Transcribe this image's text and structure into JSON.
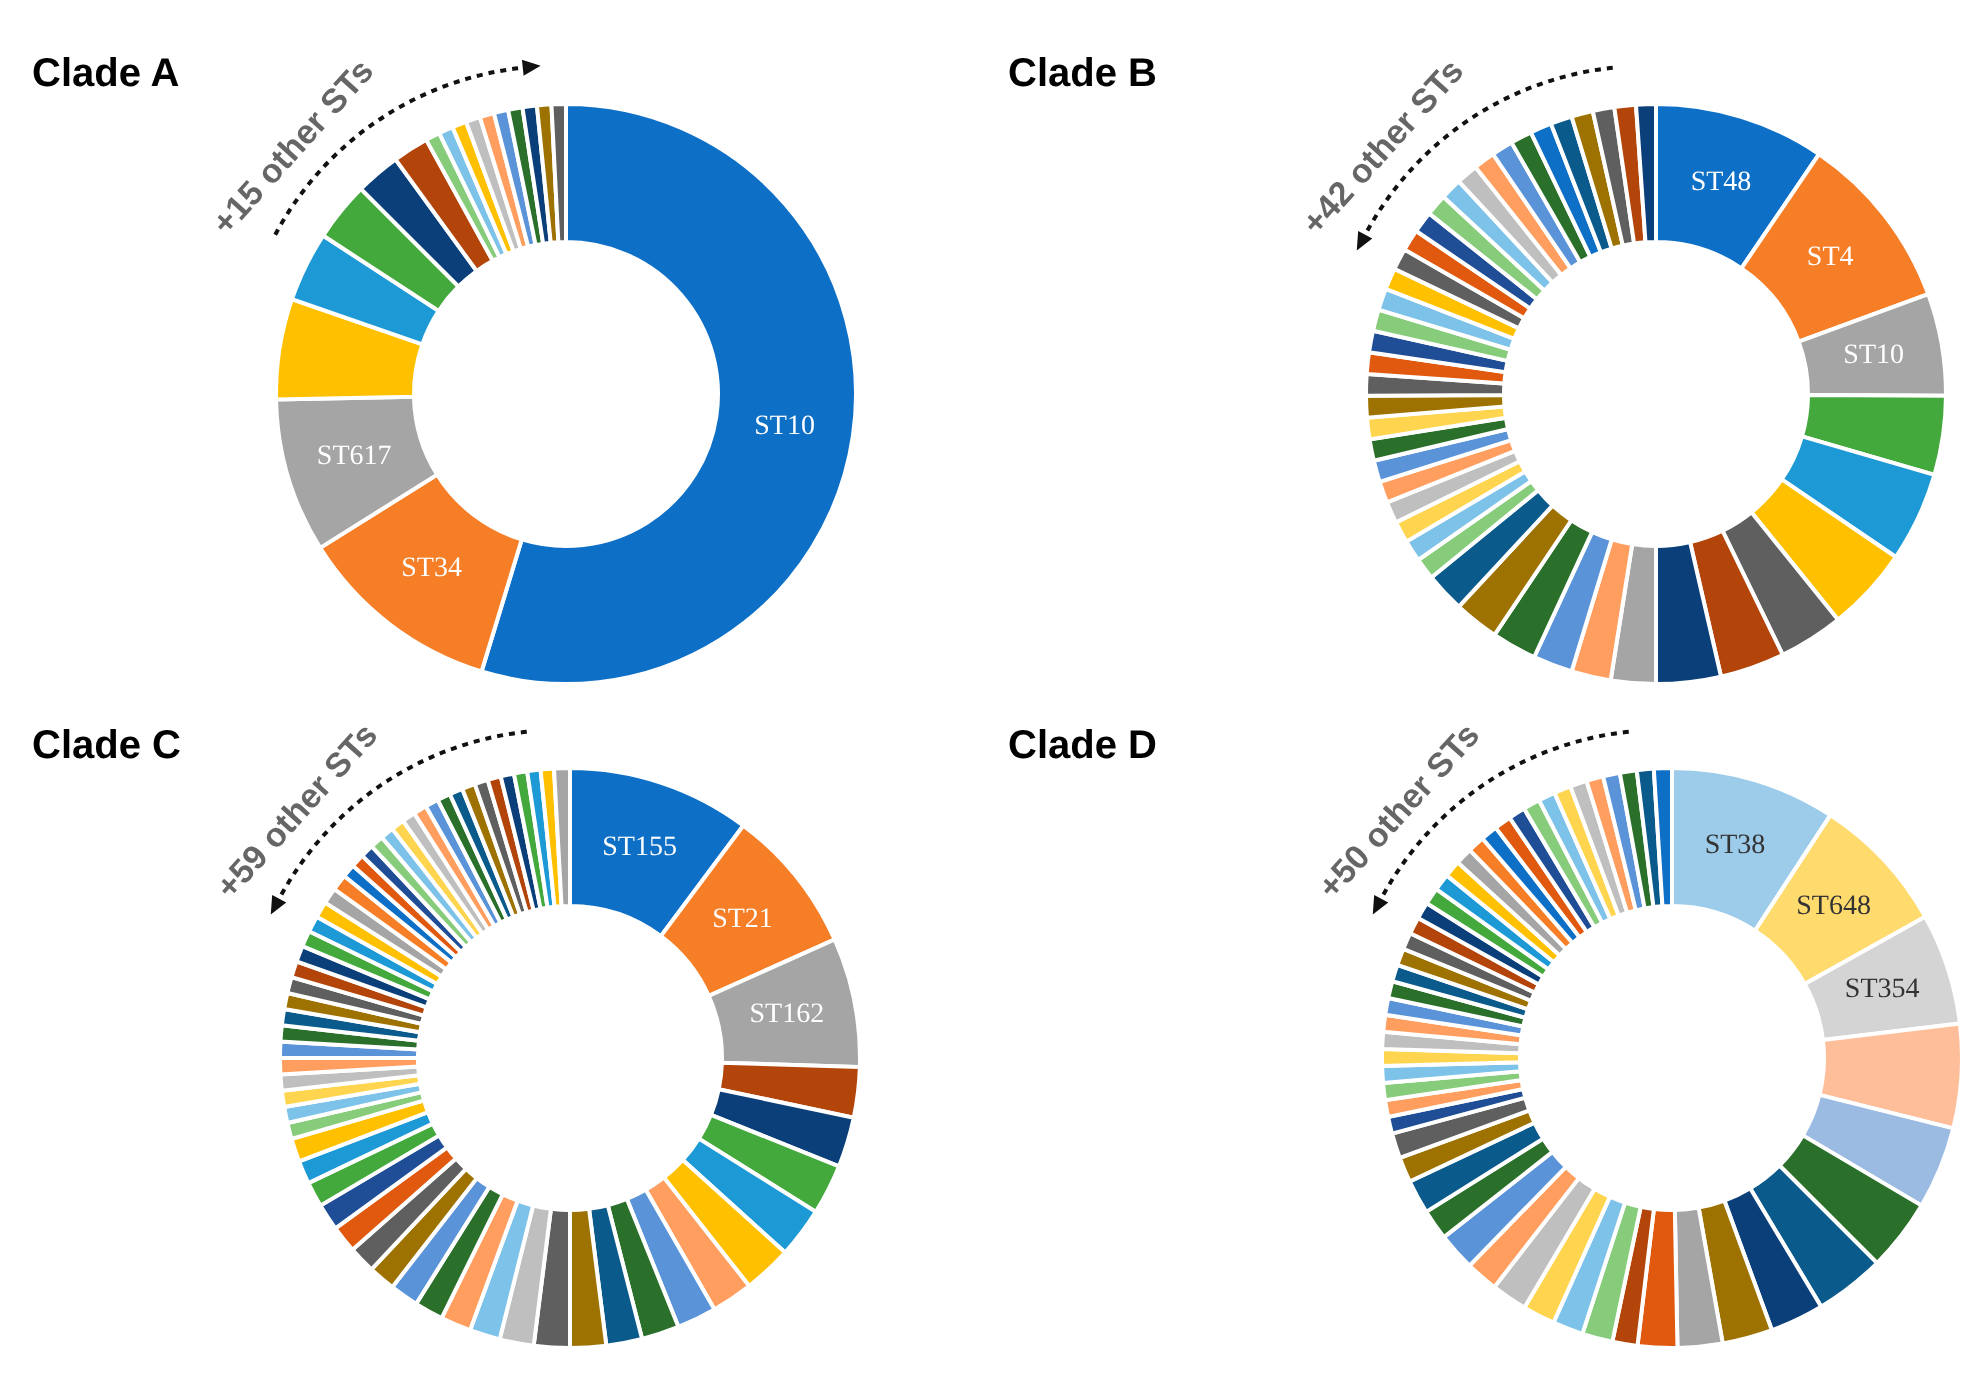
{
  "chart_data": [
    {
      "type": "donut",
      "title": "Clade A",
      "annotations": [
        "+15 other STs"
      ],
      "categories": [
        "ST10",
        "ST34",
        "ST617",
        null,
        null,
        null,
        null,
        null,
        null,
        null,
        null,
        null,
        null,
        null,
        null,
        null,
        null,
        null
      ],
      "values": [
        54.7,
        11.4,
        8.6,
        5.6,
        3.9,
        3.3,
        2.5,
        2.0,
        0.8,
        0.8,
        0.8,
        0.8,
        0.8,
        0.8,
        0.8,
        0.8,
        0.8,
        0.8
      ],
      "colors": [
        "#0E6FC6",
        "#F57E27",
        "#A5A5A5",
        "#FFC000",
        "#1D9AD6",
        "#43A93D",
        "#0B3F7A",
        "#B3450A",
        "#86CC7A",
        "#7DC2E8",
        "#FFC000",
        "#BFBFBF",
        "#FF9E5E",
        "#5B93D8",
        "#2A6F2A",
        "#0B3F7A",
        "#9E7200",
        "#5F5F5F"
      ]
    },
    {
      "type": "donut",
      "title": "Clade B",
      "annotations": [
        "+42 other STs"
      ],
      "categories": [
        "ST48",
        "ST4",
        "ST10",
        null,
        null,
        null,
        null,
        null,
        null,
        null,
        null,
        null,
        null,
        null,
        null,
        null,
        null,
        null,
        null,
        null,
        null,
        null,
        null,
        null,
        null,
        null,
        null,
        null,
        null,
        null,
        null,
        null,
        null,
        null,
        null,
        null,
        null,
        null,
        null,
        null,
        null,
        null,
        null,
        null,
        null
      ],
      "values": [
        9.5,
        9.9,
        5.7,
        4.4,
        5.0,
        4.7,
        3.6,
        3.6,
        3.6,
        2.5,
        2.2,
        2.2,
        2.5,
        2.5,
        2.2,
        1.2,
        1.2,
        1.2,
        1.2,
        1.2,
        1.2,
        1.2,
        1.2,
        1.2,
        1.2,
        1.2,
        1.2,
        1.2,
        1.2,
        1.2,
        1.2,
        1.2,
        1.2,
        1.2,
        1.2,
        1.2,
        1.2,
        1.2,
        1.2,
        1.2,
        1.2,
        1.2,
        1.2,
        1.2,
        1.1
      ],
      "colors": [
        "#0E6FC6",
        "#F57E27",
        "#A5A5A5",
        "#43A93D",
        "#1D9AD6",
        "#FFC000",
        "#5F5F5F",
        "#B3450A",
        "#0B3F7A",
        "#A5A5A5",
        "#FF9E5E",
        "#5B93D8",
        "#2A6F2A",
        "#9E7200",
        "#0B5A8C",
        "#86CC7A",
        "#7DC2E8",
        "#FFD54F",
        "#BFBFBF",
        "#FF9E5E",
        "#5B93D8",
        "#2A6F2A",
        "#FFD54F",
        "#9E7200",
        "#5F5F5F",
        "#E0590E",
        "#1F4E96",
        "#86CC7A",
        "#7DC2E8",
        "#FFC000",
        "#5F5F5F",
        "#E0590E",
        "#1F4E96",
        "#86CC7A",
        "#7DC2E8",
        "#BFBFBF",
        "#FF9E5E",
        "#5B93D8",
        "#2A6F2A",
        "#0E6FC6",
        "#0B5A8C",
        "#9E7200",
        "#5F5F5F",
        "#B3450A",
        "#0B3F7A"
      ]
    },
    {
      "type": "donut",
      "title": "Clade C",
      "annotations": [
        "+59 other STs"
      ],
      "categories": [
        "ST155",
        "ST21",
        "ST162",
        null,
        null,
        null,
        null,
        null,
        null,
        null,
        null,
        null,
        null,
        null,
        null,
        null,
        null,
        null,
        null,
        null,
        null,
        null,
        null,
        null,
        null,
        null,
        null,
        null,
        null,
        null,
        null,
        null,
        null,
        null,
        null,
        null,
        null,
        null,
        null,
        null,
        null,
        null,
        null,
        null,
        null,
        null,
        null,
        null,
        null,
        null,
        null,
        null,
        null,
        null,
        null,
        null,
        null,
        null,
        null,
        null,
        null,
        null
      ],
      "values": [
        10.2,
        8.1,
        7.2,
        2.8,
        2.8,
        2.8,
        2.8,
        2.7,
        2.3,
        2.2,
        2.1,
        2.0,
        2.0,
        2.0,
        1.9,
        1.7,
        1.7,
        1.6,
        1.6,
        1.5,
        1.5,
        1.5,
        1.5,
        1.4,
        1.3,
        1.3,
        0.9,
        0.9,
        0.9,
        0.9,
        0.9,
        0.9,
        0.9,
        0.9,
        0.9,
        0.9,
        0.9,
        0.9,
        0.9,
        0.9,
        0.9,
        0.9,
        0.9,
        0.74,
        0.74,
        0.74,
        0.74,
        0.74,
        0.74,
        0.74,
        0.74,
        0.74,
        0.74,
        0.74,
        0.74,
        0.74,
        0.74,
        0.74,
        0.74,
        0.74,
        0.74,
        0.88
      ],
      "colors": [
        "#0E6FC6",
        "#F57E27",
        "#A5A5A5",
        "#B3450A",
        "#0B3F7A",
        "#43A93D",
        "#1D9AD6",
        "#FFC000",
        "#FF9E5E",
        "#5B93D8",
        "#2A6F2A",
        "#0B5A8C",
        "#9E7200",
        "#5F5F5F",
        "#BFBFBF",
        "#7DC2E8",
        "#FF9E5E",
        "#2A6F2A",
        "#5B93D8",
        "#9E7200",
        "#5F5F5F",
        "#E0590E",
        "#1F4E96",
        "#43A93D",
        "#1D9AD6",
        "#FFC000",
        "#86CC7A",
        "#7DC2E8",
        "#FFD54F",
        "#BFBFBF",
        "#FF9E5E",
        "#5B93D8",
        "#2A6F2A",
        "#0B5A8C",
        "#9E7200",
        "#5F5F5F",
        "#B3450A",
        "#0B3F7A",
        "#43A93D",
        "#1D9AD6",
        "#FFC000",
        "#A5A5A5",
        "#F57E27",
        "#0E6FC6",
        "#E0590E",
        "#1F4E96",
        "#86CC7A",
        "#7DC2E8",
        "#FFD54F",
        "#BFBFBF",
        "#FF9E5E",
        "#5B93D8",
        "#2A6F2A",
        "#0B5A8C",
        "#9E7200",
        "#5F5F5F",
        "#B3450A",
        "#0B3F7A",
        "#43A93D",
        "#1D9AD6",
        "#FFC000",
        "#A5A5A5"
      ]
    },
    {
      "type": "donut",
      "title": "Clade D",
      "annotations": [
        "+50 other STs"
      ],
      "categories": [
        "ST38",
        "ST648",
        "ST354",
        null,
        null,
        null,
        null,
        null,
        null,
        null,
        null,
        null,
        null,
        null,
        null,
        null,
        null,
        null,
        null,
        null,
        null,
        null,
        null,
        null,
        null,
        null,
        null,
        null,
        null,
        null,
        null,
        null,
        null,
        null,
        null,
        null,
        null,
        null,
        null,
        null,
        null,
        null,
        null,
        null,
        null,
        null,
        null,
        null,
        null,
        null,
        null,
        null,
        null
      ],
      "values": [
        9.2,
        7.7,
        6.2,
        5.8,
        4.6,
        4.0,
        3.9,
        3.0,
        2.8,
        2.5,
        2.2,
        1.4,
        1.7,
        1.7,
        1.8,
        2.0,
        1.8,
        2.1,
        1.7,
        1.9,
        1.4,
        1.4,
        0.94,
        0.94,
        0.94,
        0.94,
        0.94,
        0.94,
        0.94,
        0.94,
        0.94,
        0.94,
        0.94,
        0.94,
        0.94,
        0.94,
        0.94,
        0.94,
        0.94,
        0.94,
        0.94,
        0.94,
        0.94,
        0.94,
        0.94,
        0.94,
        0.94,
        0.94,
        0.94,
        0.94,
        0.94,
        0.94,
        1.0
      ],
      "colors": [
        "#9DCBEA",
        "#FFDB6E",
        "#D4D4D4",
        "#FFBE9A",
        "#9BBBE3",
        "#2A6F2A",
        "#0B5A8C",
        "#0B3F7A",
        "#9E7200",
        "#A5A5A5",
        "#E0590E",
        "#B3450A",
        "#86CC7A",
        "#7DC2E8",
        "#FFD54F",
        "#BFBFBF",
        "#FF9E5E",
        "#5B93D8",
        "#2A6F2A",
        "#0B5A8C",
        "#9E7200",
        "#5F5F5F",
        "#1F4E96",
        "#FF9E5E",
        "#86CC7A",
        "#7DC2E8",
        "#FFD54F",
        "#BFBFBF",
        "#FF9E5E",
        "#5B93D8",
        "#2A6F2A",
        "#0B5A8C",
        "#9E7200",
        "#5F5F5F",
        "#B3450A",
        "#0B3F7A",
        "#43A93D",
        "#1D9AD6",
        "#FFC000",
        "#A5A5A5",
        "#F57E27",
        "#0E6FC6",
        "#E0590E",
        "#1F4E96",
        "#86CC7A",
        "#7DC2E8",
        "#FFD54F",
        "#BFBFBF",
        "#FF9E5E",
        "#5B93D8",
        "#2A6F2A",
        "#0B5A8C",
        "#0E6FC6"
      ]
    }
  ]
}
